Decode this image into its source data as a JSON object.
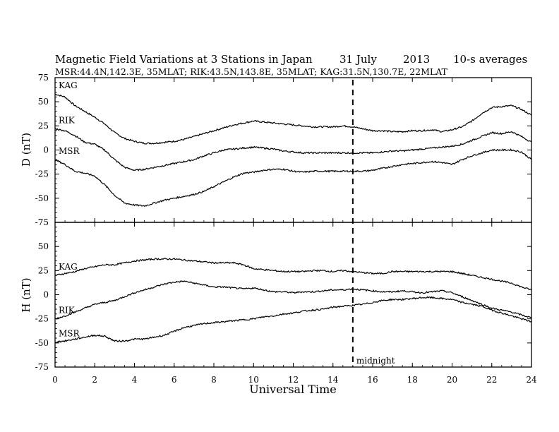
{
  "chart_data": {
    "type": "line",
    "title": "Magnetic Field Variations at 3 Stations in Japan",
    "date": "31 July",
    "year": "2013",
    "averaging": "10-s averages",
    "subtitle": "MSR:44.4N,142.3E, 35MLAT;  RIK:43.5N,143.8E, 35MLAT;  KAG:31.5N,130.7E, 22MLAT",
    "xlabel": "Universal Time",
    "xlim": [
      0,
      24
    ],
    "xticks": [
      0,
      2,
      4,
      6,
      8,
      10,
      12,
      14,
      16,
      18,
      20,
      22,
      24
    ],
    "midnight_label": "midnight",
    "midnight_ut": 15,
    "panels": [
      {
        "ylabel": "D (nT)",
        "ylim": [
          -75,
          75
        ],
        "yticks": [
          75,
          50,
          25,
          0,
          -25,
          -50,
          -75
        ],
        "series": [
          {
            "name": "KAG",
            "x": [
              0,
              0.5,
              1,
              1.5,
              2,
              2.5,
              3,
              3.5,
              4,
              4.5,
              5,
              5.5,
              6,
              6.5,
              7,
              7.5,
              8,
              8.5,
              9,
              9.5,
              10,
              10.5,
              11,
              11.5,
              12,
              12.5,
              13,
              13.5,
              14,
              14.5,
              15,
              15.5,
              16,
              16.5,
              17,
              17.5,
              18,
              18.5,
              19,
              19.5,
              20,
              20.5,
              21,
              21.5,
              22,
              22.5,
              23,
              23.5,
              24
            ],
            "values": [
              58,
              55,
              46,
              40,
              34,
              27,
              18,
              12,
              9,
              7,
              7,
              8,
              9,
              11,
              14,
              17,
              20,
              23,
              26,
              28,
              30,
              29,
              28,
              27,
              26,
              25,
              24,
              24,
              24,
              25,
              24,
              22,
              20,
              20,
              19,
              19,
              20,
              20,
              21,
              19,
              21,
              24,
              30,
              38,
              44,
              45,
              46,
              42,
              36
            ]
          },
          {
            "name": "RIK",
            "x": [
              0,
              0.5,
              1,
              1.5,
              2,
              2.5,
              3,
              3.5,
              4,
              4.5,
              5,
              5.5,
              6,
              6.5,
              7,
              7.5,
              8,
              8.5,
              9,
              9.5,
              10,
              10.5,
              11,
              11.5,
              12,
              12.5,
              13,
              13.5,
              14,
              14.5,
              15,
              15.5,
              16,
              16.5,
              17,
              17.5,
              18,
              18.5,
              19,
              19.5,
              20,
              20.5,
              21,
              21.5,
              22,
              22.5,
              23,
              23.5,
              24
            ],
            "values": [
              22,
              20,
              15,
              8,
              6,
              0,
              -10,
              -18,
              -21,
              -20,
              -18,
              -16,
              -14,
              -12,
              -10,
              -6,
              -3,
              0,
              1,
              2,
              3,
              2,
              1,
              -1,
              -2,
              -3,
              -3,
              -3,
              -3,
              -3,
              -3,
              -3,
              -3,
              -2,
              -1,
              -1,
              0,
              1,
              2,
              3,
              4,
              6,
              10,
              14,
              18,
              17,
              19,
              14,
              8
            ]
          },
          {
            "name": "MSR",
            "x": [
              0,
              0.5,
              1,
              1.5,
              2,
              2.5,
              3,
              3.5,
              4,
              4.5,
              5,
              5.5,
              6,
              6.5,
              7,
              7.5,
              8,
              8.5,
              9,
              9.5,
              10,
              10.5,
              11,
              11.5,
              12,
              12.5,
              13,
              13.5,
              14,
              14.5,
              15,
              15.5,
              16,
              16.5,
              17,
              17.5,
              18,
              18.5,
              19,
              19.5,
              20,
              20.5,
              21,
              21.5,
              22,
              22.5,
              23,
              23.5,
              24
            ],
            "values": [
              -10,
              -15,
              -22,
              -24,
              -27,
              -36,
              -47,
              -55,
              -57,
              -58,
              -55,
              -52,
              -50,
              -48,
              -46,
              -43,
              -38,
              -33,
              -28,
              -24,
              -23,
              -21,
              -20,
              -20,
              -22,
              -23,
              -22,
              -22,
              -22,
              -22,
              -22,
              -22,
              -21,
              -19,
              -17,
              -15,
              -14,
              -13,
              -12,
              -13,
              -15,
              -10,
              -6,
              -3,
              0,
              0,
              0,
              -2,
              -10
            ]
          }
        ]
      },
      {
        "ylabel": "H (nT)",
        "ylim": [
          -75,
          75
        ],
        "yticks": [
          50,
          25,
          0,
          -25,
          -50,
          -75
        ],
        "series": [
          {
            "name": "KAG",
            "x": [
              0,
              0.5,
              1,
              1.5,
              2,
              2.5,
              3,
              3.5,
              4,
              4.5,
              5,
              5.5,
              6,
              6.5,
              7,
              7.5,
              8,
              8.5,
              9,
              9.5,
              10,
              10.5,
              11,
              11.5,
              12,
              12.5,
              13,
              13.5,
              14,
              14.5,
              15,
              15.5,
              16,
              16.5,
              17,
              17.5,
              18,
              18.5,
              19,
              19.5,
              20,
              20.5,
              21,
              21.5,
              22,
              22.5,
              23,
              23.5,
              24
            ],
            "values": [
              20,
              22,
              24,
              27,
              29,
              31,
              31,
              33,
              35,
              36,
              37,
              37,
              37,
              36,
              35,
              34,
              33,
              33,
              33,
              31,
              27,
              26,
              25,
              24,
              24,
              24,
              25,
              25,
              24,
              25,
              24,
              23,
              22,
              22,
              24,
              24,
              24,
              24,
              24,
              24,
              24,
              22,
              20,
              18,
              16,
              14,
              12,
              8,
              5
            ]
          },
          {
            "name": "RIK",
            "x": [
              0,
              0.5,
              1,
              1.5,
              2,
              2.5,
              3,
              3.5,
              4,
              4.5,
              5,
              5.5,
              6,
              6.5,
              7,
              7.5,
              8,
              8.5,
              9,
              9.5,
              10,
              10.5,
              11,
              11.5,
              12,
              12.5,
              13,
              13.5,
              14,
              14.5,
              15,
              15.5,
              16,
              16.5,
              17,
              17.5,
              18,
              18.5,
              19,
              19.5,
              20,
              20.5,
              21,
              21.5,
              22,
              22.5,
              23,
              23.5,
              24
            ],
            "values": [
              -25,
              -22,
              -18,
              -14,
              -10,
              -8,
              -6,
              -2,
              2,
              5,
              8,
              11,
              13,
              14,
              12,
              10,
              8,
              8,
              7,
              6,
              7,
              5,
              3,
              3,
              2,
              3,
              3,
              4,
              5,
              5,
              6,
              5,
              4,
              3,
              3,
              4,
              3,
              2,
              3,
              4,
              2,
              -2,
              -6,
              -10,
              -14,
              -16,
              -18,
              -21,
              -24
            ]
          },
          {
            "name": "MSR",
            "x": [
              0,
              0.5,
              1,
              1.5,
              2,
              2.5,
              3,
              3.5,
              4,
              4.5,
              5,
              5.5,
              6,
              6.5,
              7,
              7.5,
              8,
              8.5,
              9,
              9.5,
              10,
              10.5,
              11,
              11.5,
              12,
              12.5,
              13,
              13.5,
              14,
              14.5,
              15,
              15.5,
              16,
              16.5,
              17,
              17.5,
              18,
              18.5,
              19,
              19.5,
              20,
              20.5,
              21,
              21.5,
              22,
              22.5,
              23,
              23.5,
              24
            ],
            "values": [
              -49,
              -48,
              -46,
              -44,
              -42,
              -43,
              -48,
              -48,
              -46,
              -46,
              -44,
              -42,
              -38,
              -34,
              -32,
              -30,
              -29,
              -28,
              -27,
              -26,
              -25,
              -23,
              -22,
              -20,
              -19,
              -17,
              -16,
              -15,
              -13,
              -12,
              -11,
              -10,
              -8,
              -6,
              -5,
              -5,
              -4,
              -3,
              -3,
              -4,
              -5,
              -8,
              -10,
              -12,
              -16,
              -19,
              -22,
              -25,
              -28
            ]
          }
        ]
      }
    ]
  }
}
